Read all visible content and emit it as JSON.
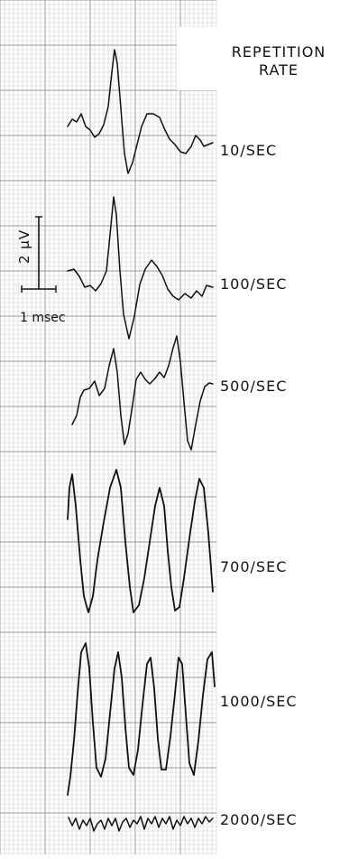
{
  "figure": {
    "header_line1": "REPETITION",
    "header_line2": "RATE",
    "scale_bar": {
      "voltage_label": "2 μV",
      "time_label": "1 msec"
    },
    "traces": [
      {
        "label": "10/SEC"
      },
      {
        "label": "100/SEC"
      },
      {
        "label": "500/SEC"
      },
      {
        "label": "700/SEC"
      },
      {
        "label": "1000/SEC"
      },
      {
        "label": "2000/SEC"
      }
    ],
    "colors": {
      "grid_minor": "#cfcfcf",
      "grid_major": "#9a9a9a",
      "trace": "#111111"
    }
  }
}
